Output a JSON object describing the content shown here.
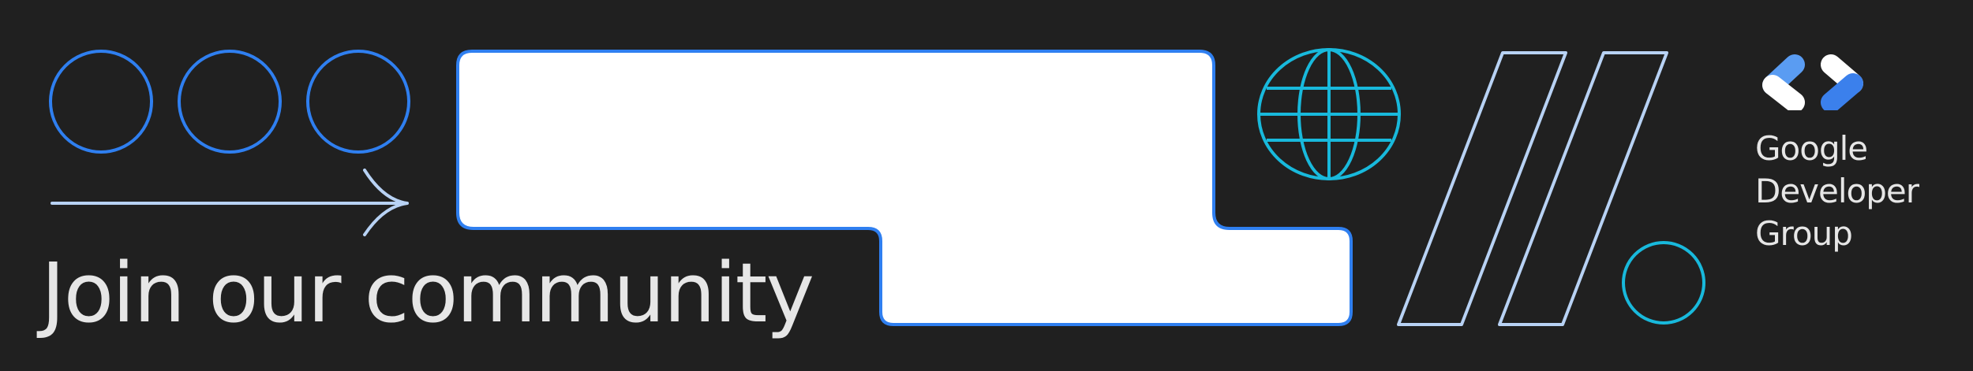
{
  "banner": {
    "headline": "Join our community",
    "brand": {
      "line1": "Google",
      "line2": "Developer",
      "line3": "Group"
    }
  },
  "colors": {
    "background": "#202020",
    "blue": "#2f7ff0",
    "cyan": "#18b9dc",
    "light_blue": "#b8d2f4",
    "white": "#ffffff",
    "text": "#e6e6e6"
  },
  "icons": {
    "circles": "outline-circle",
    "arrow": "arrow-right-icon",
    "globe": "globe-icon",
    "slashes": "double-slash-icon",
    "logo": "google-developer-group-logo"
  }
}
